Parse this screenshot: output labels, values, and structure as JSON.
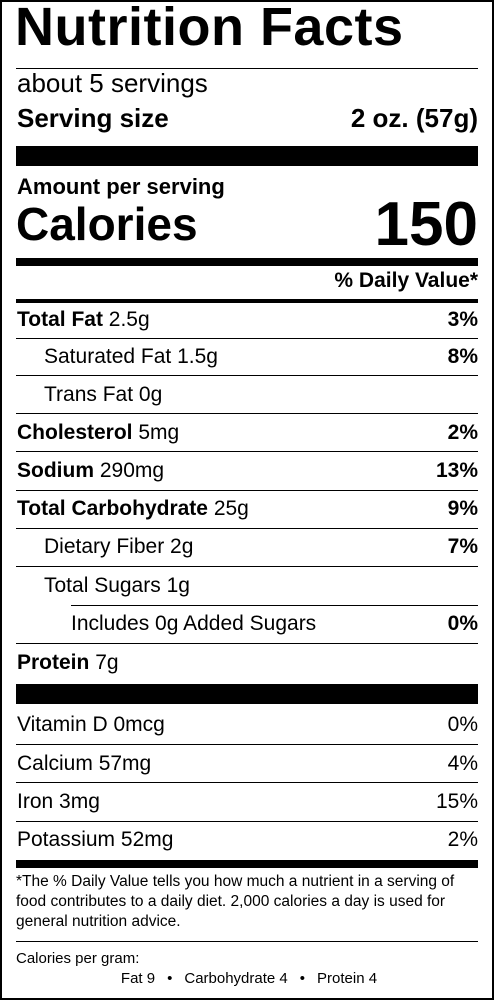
{
  "title": "Nutrition Facts",
  "servings_per_container": "about 5 servings",
  "serving_size": {
    "label": "Serving size",
    "value": "2 oz. (57g)"
  },
  "amount_per_serving": "Amount per serving",
  "calories": {
    "label": "Calories",
    "value": "150"
  },
  "daily_value_header": "% Daily Value*",
  "nutrients": [
    {
      "name": "Total Fat",
      "amount": "2.5g",
      "dv": "3%"
    },
    {
      "name": "Saturated Fat",
      "amount": "1.5g",
      "dv": "8%"
    },
    {
      "name": "Trans Fat",
      "amount": "0g",
      "dv": ""
    },
    {
      "name": "Cholesterol",
      "amount": "5mg",
      "dv": "2%"
    },
    {
      "name": "Sodium",
      "amount": "290mg",
      "dv": "13%"
    },
    {
      "name": "Total Carbohydrate",
      "amount": "25g",
      "dv": "9%"
    },
    {
      "name": "Dietary Fiber",
      "amount": "2g",
      "dv": "7%"
    },
    {
      "name": "Total Sugars",
      "amount": "1g",
      "dv": ""
    },
    {
      "name": "Includes 0g Added Sugars",
      "amount": "",
      "dv": "0%"
    },
    {
      "name": "Protein",
      "amount": "7g",
      "dv": ""
    }
  ],
  "vitamins": [
    {
      "name": "Vitamin D",
      "amount": "0mcg",
      "dv": "0%"
    },
    {
      "name": "Calcium",
      "amount": "57mg",
      "dv": "4%"
    },
    {
      "name": "Iron",
      "amount": "3mg",
      "dv": "15%"
    },
    {
      "name": "Potassium",
      "amount": "52mg",
      "dv": "2%"
    }
  ],
  "footnote": "*The % Daily Value tells you how much a nutrient in a serving of food contributes to a daily diet. 2,000 calories a day is used for general nutrition advice.",
  "calories_per_gram": {
    "label": "Calories per gram:",
    "fat": "Fat 9",
    "carbohydrate": "Carbohydrate 4",
    "protein": "Protein 4",
    "separator": "•"
  }
}
